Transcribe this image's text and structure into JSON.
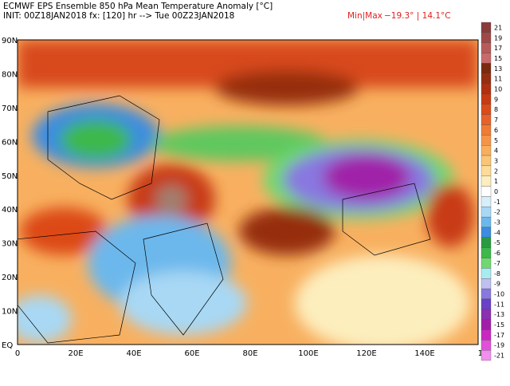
{
  "header": {
    "title": "ECMWF EPS Ensemble 850 hPa Mean Temperature Anomaly [°C]",
    "init": "INIT: 00Z18JAN2018 fx: [120] hr --> Tue 00Z23JAN2018",
    "minmax_label": "Min|Max",
    "minmax_values": "−19.3° | 14.1°C"
  },
  "map": {
    "lat_labels": [
      "90N",
      "80N",
      "70N",
      "60N",
      "50N",
      "40N",
      "30N",
      "20N",
      "10N",
      "EQ"
    ],
    "lon_labels": [
      "0",
      "20E",
      "40E",
      "60E",
      "80E",
      "100E",
      "120E",
      "140E",
      "16"
    ]
  },
  "colorbar": [
    {
      "label": "21",
      "color": "#8a3c3c"
    },
    {
      "label": "19",
      "color": "#a04848"
    },
    {
      "label": "17",
      "color": "#b85a5a"
    },
    {
      "label": "15",
      "color": "#c86a6a"
    },
    {
      "label": "13",
      "color": "#7a2a10"
    },
    {
      "label": "11",
      "color": "#962e10"
    },
    {
      "label": "10",
      "color": "#b03010"
    },
    {
      "label": "9",
      "color": "#c83a12"
    },
    {
      "label": "8",
      "color": "#dc4a18"
    },
    {
      "label": "7",
      "color": "#e8602a"
    },
    {
      "label": "6",
      "color": "#f07a36"
    },
    {
      "label": "5",
      "color": "#f59448"
    },
    {
      "label": "4",
      "color": "#f8ae5c"
    },
    {
      "label": "3",
      "color": "#fac676"
    },
    {
      "label": "2",
      "color": "#fcdc98"
    },
    {
      "label": "1",
      "color": "#fdeebe"
    },
    {
      "label": "0",
      "color": "#ffffff"
    },
    {
      "label": "-1",
      "color": "#d8eefa"
    },
    {
      "label": "-2",
      "color": "#a8d8f4"
    },
    {
      "label": "-3",
      "color": "#6cb8ec"
    },
    {
      "label": "-4",
      "color": "#3c8ce0"
    },
    {
      "label": "-5",
      "color": "#2a9a40"
    },
    {
      "label": "-6",
      "color": "#3cb84c"
    },
    {
      "label": "-7",
      "color": "#70d870"
    },
    {
      "label": "-8",
      "color": "#a8ecf0"
    },
    {
      "label": "-9",
      "color": "#c0c0f0"
    },
    {
      "label": "-10",
      "color": "#8878e0"
    },
    {
      "label": "-11",
      "color": "#6a40c8"
    },
    {
      "label": "-13",
      "color": "#8a30b0"
    },
    {
      "label": "-15",
      "color": "#a020a8"
    },
    {
      "label": "-17",
      "color": "#c828c0"
    },
    {
      "label": "-19",
      "color": "#e050d8"
    },
    {
      "label": "-21",
      "color": "#f090ec"
    }
  ]
}
